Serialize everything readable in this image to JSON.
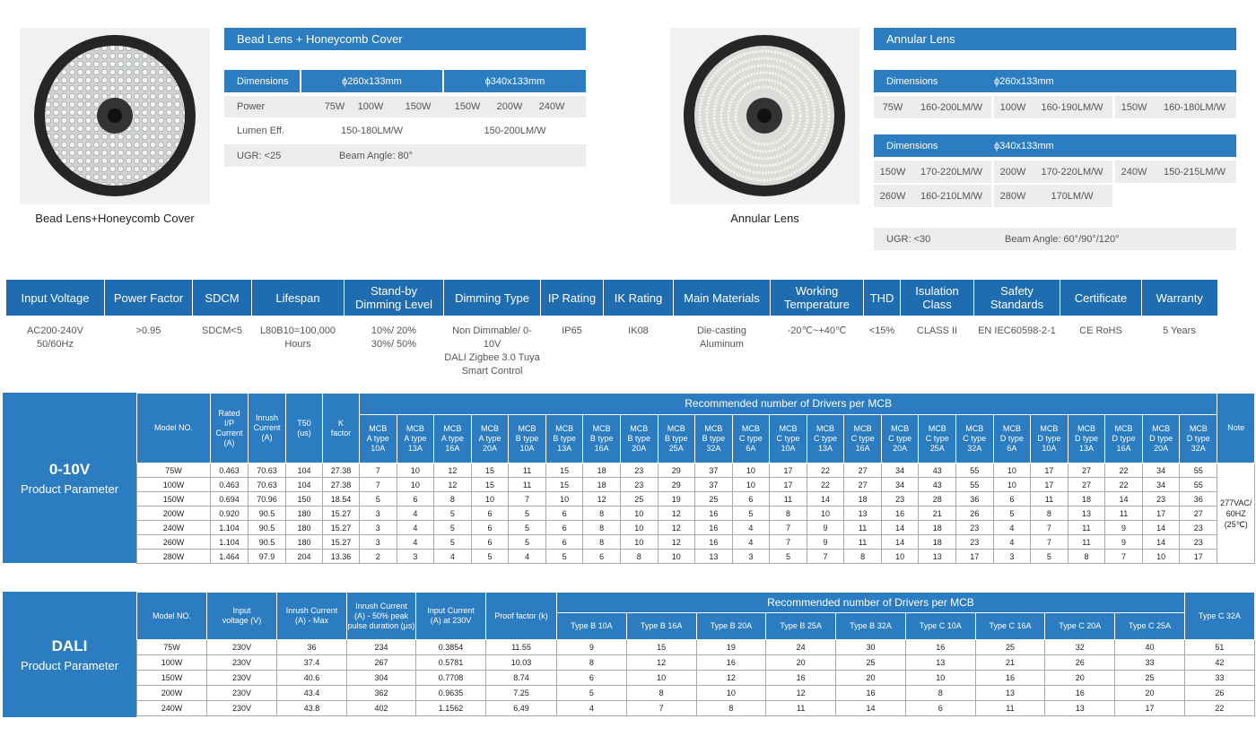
{
  "bead": {
    "caption": "Bead Lens+Honeycomb Cover",
    "title": "Bead Lens + Honeycomb Cover",
    "dimensions_label": "Dimensions",
    "dimensions": [
      "ϕ260x133mm",
      "ϕ340x133mm"
    ],
    "power_label": "Power",
    "power": [
      "75W",
      "100W",
      "150W",
      "150W",
      "200W",
      "240W"
    ],
    "lumen_label": "Lumen Eff.",
    "lumen": [
      "150-180LM/W",
      "150-200LM/W"
    ],
    "ugr": "UGR: <25",
    "beam": "Beam Angle: 80°"
  },
  "annular": {
    "caption": "Annular Lens",
    "title": "Annular Lens",
    "groups": [
      {
        "dimensions_label": "Dimensions",
        "dimensions": "ϕ260x133mm",
        "items": [
          [
            "75W",
            "160-200LM/W"
          ],
          [
            "100W",
            "160-190LM/W"
          ],
          [
            "150W",
            "160-180LM/W"
          ]
        ]
      },
      {
        "dimensions_label": "Dimensions",
        "dimensions": "ϕ340x133mm",
        "items": [
          [
            "150W",
            "170-220LM/W"
          ],
          [
            "200W",
            "170-220LM/W"
          ],
          [
            "240W",
            "150-215LM/W"
          ],
          [
            "260W",
            "160-210LM/W"
          ],
          [
            "280W",
            "170LM/W"
          ]
        ]
      }
    ],
    "ugr": "UGR: <30",
    "beam": "Beam Angle: 60°/90°/120°"
  },
  "specs": {
    "headers": [
      "Input Voltage",
      "Power Factor",
      "SDCM",
      "Lifespan",
      "Stand-by\nDimming Level",
      "Dimming Type",
      "IP Rating",
      "IK Rating",
      "Main Materials",
      "Working\nTemperature",
      "THD",
      "Isulation\nClass",
      "Safety\nStandards",
      "Certificate",
      "Warranty"
    ],
    "values": [
      "AC200-240V\n50/60Hz",
      ">0.95",
      "SDCM<5",
      "L80B10=100,000\nHours",
      "10%/ 20%\n30%/ 50%",
      "Non Dimmable/ 0-10V\nDALI Zigbee 3.0 Tuya\nSmart Control",
      "IP65",
      "IK08",
      "Die-casting\nAluminum",
      "-20℃~+40℃",
      "<15%",
      "CLASS II",
      "EN IEC60598-2-1",
      "CE RoHS",
      "5 Years"
    ]
  },
  "table_0_10v": {
    "name": "0-10V",
    "subtitle": "Product Parameter",
    "headers": [
      "Model NO.",
      "Rated\nI/P\nCurrent\n(A)",
      "Inrush\nCurrent\n(A)",
      "T50\n(us)",
      "K\nfactor"
    ],
    "group_header": "Recommended number of Drivers per MCB",
    "sub_headers": [
      "MCB\nA type\n10A",
      "MCB\nA type\n13A",
      "MCB\nA type\n16A",
      "MCB\nA type\n20A",
      "MCB\nB type\n10A",
      "MCB\nB type\n13A",
      "MCB\nB type\n16A",
      "MCB\nB type\n20A",
      "MCB\nB type\n25A",
      "MCB\nB type\n32A",
      "MCB\nC type\n6A",
      "MCB\nC type\n10A",
      "MCB\nC type\n13A",
      "MCB\nC type\n16A",
      "MCB\nC type\n20A",
      "MCB\nC type\n25A",
      "MCB\nC type\n32A",
      "MCB\nD type\n6A",
      "MCB\nD type\n10A",
      "MCB\nD type\n13A",
      "MCB\nD type\n16A",
      "MCB\nD type\n20A",
      "MCB\nD type\n32A"
    ],
    "last_header": "Note",
    "rows": [
      [
        "75W",
        "0.463",
        "70.63",
        "104",
        "27.38",
        "7",
        "10",
        "12",
        "15",
        "11",
        "15",
        "18",
        "23",
        "29",
        "37",
        "10",
        "17",
        "22",
        "27",
        "34",
        "43",
        "55",
        "10",
        "17",
        "27",
        "22",
        "34",
        "55"
      ],
      [
        "100W",
        "0.463",
        "70.63",
        "104",
        "27.38",
        "7",
        "10",
        "12",
        "15",
        "11",
        "15",
        "18",
        "23",
        "29",
        "37",
        "10",
        "17",
        "22",
        "27",
        "34",
        "43",
        "55",
        "10",
        "17",
        "27",
        "22",
        "34",
        "55"
      ],
      [
        "150W",
        "0.694",
        "70.96",
        "150",
        "18.54",
        "5",
        "6",
        "8",
        "10",
        "7",
        "10",
        "12",
        "25",
        "19",
        "25",
        "6",
        "11",
        "14",
        "18",
        "23",
        "28",
        "36",
        "6",
        "11",
        "18",
        "14",
        "23",
        "36"
      ],
      [
        "200W",
        "0.920",
        "90.5",
        "180",
        "15.27",
        "3",
        "4",
        "5",
        "6",
        "5",
        "6",
        "8",
        "10",
        "12",
        "16",
        "5",
        "8",
        "10",
        "13",
        "16",
        "21",
        "26",
        "5",
        "8",
        "13",
        "11",
        "17",
        "27"
      ],
      [
        "240W",
        "1.104",
        "90.5",
        "180",
        "15.27",
        "3",
        "4",
        "5",
        "6",
        "5",
        "6",
        "8",
        "10",
        "12",
        "16",
        "4",
        "7",
        "9",
        "11",
        "14",
        "18",
        "23",
        "4",
        "7",
        "11",
        "9",
        "14",
        "23"
      ],
      [
        "260W",
        "1.104",
        "90.5",
        "180",
        "15.27",
        "3",
        "4",
        "5",
        "6",
        "5",
        "6",
        "8",
        "10",
        "12",
        "16",
        "4",
        "7",
        "9",
        "11",
        "14",
        "18",
        "23",
        "4",
        "7",
        "11",
        "9",
        "14",
        "23"
      ],
      [
        "280W",
        "1.464",
        "97.9",
        "204",
        "13.36",
        "2",
        "3",
        "4",
        "5",
        "4",
        "5",
        "6",
        "8",
        "10",
        "13",
        "3",
        "5",
        "7",
        "8",
        "10",
        "13",
        "17",
        "3",
        "5",
        "8",
        "7",
        "10",
        "17"
      ]
    ],
    "note": "277VAC/\n60HZ\n(25℃)"
  },
  "table_dali": {
    "name": "DALI",
    "subtitle": "Product Parameter",
    "headers": [
      "Model NO.",
      "Input\nvoltage (V)",
      "Inrush Current\n(A) - Max",
      "Inrush Current\n(A) - 50% peak\npulse duration (µs)",
      "Input Current\n(A) at 230V",
      "Proof factor (k)"
    ],
    "group_header": "Recommended number of Drivers per MCB",
    "sub_headers": [
      "Type B 10A",
      "Type B 16A",
      "Type B 20A",
      "Type B 25A",
      "Type B 32A",
      "Type C 10A",
      "Type C 16A",
      "Type C 20A",
      "Type C 25A"
    ],
    "last_header": "Type C 32A",
    "rows": [
      [
        "75W",
        "230V",
        "36",
        "234",
        "0.3854",
        "11.55",
        "9",
        "15",
        "19",
        "24",
        "30",
        "16",
        "25",
        "32",
        "40",
        "51"
      ],
      [
        "100W",
        "230V",
        "37.4",
        "267",
        "0.5781",
        "10.03",
        "8",
        "12",
        "16",
        "20",
        "25",
        "13",
        "21",
        "26",
        "33",
        "42"
      ],
      [
        "150W",
        "230V",
        "40.6",
        "304",
        "0.7708",
        "8.74",
        "6",
        "10",
        "12",
        "16",
        "20",
        "10",
        "16",
        "20",
        "25",
        "33"
      ],
      [
        "200W",
        "230V",
        "43.4",
        "362",
        "0.9635",
        "7.25",
        "5",
        "8",
        "10",
        "12",
        "16",
        "8",
        "13",
        "16",
        "20",
        "26"
      ],
      [
        "240W",
        "230V",
        "43.8",
        "402",
        "1.1562",
        "6.49",
        "4",
        "7",
        "8",
        "11",
        "14",
        "6",
        "11",
        "13",
        "17",
        "22"
      ]
    ]
  }
}
